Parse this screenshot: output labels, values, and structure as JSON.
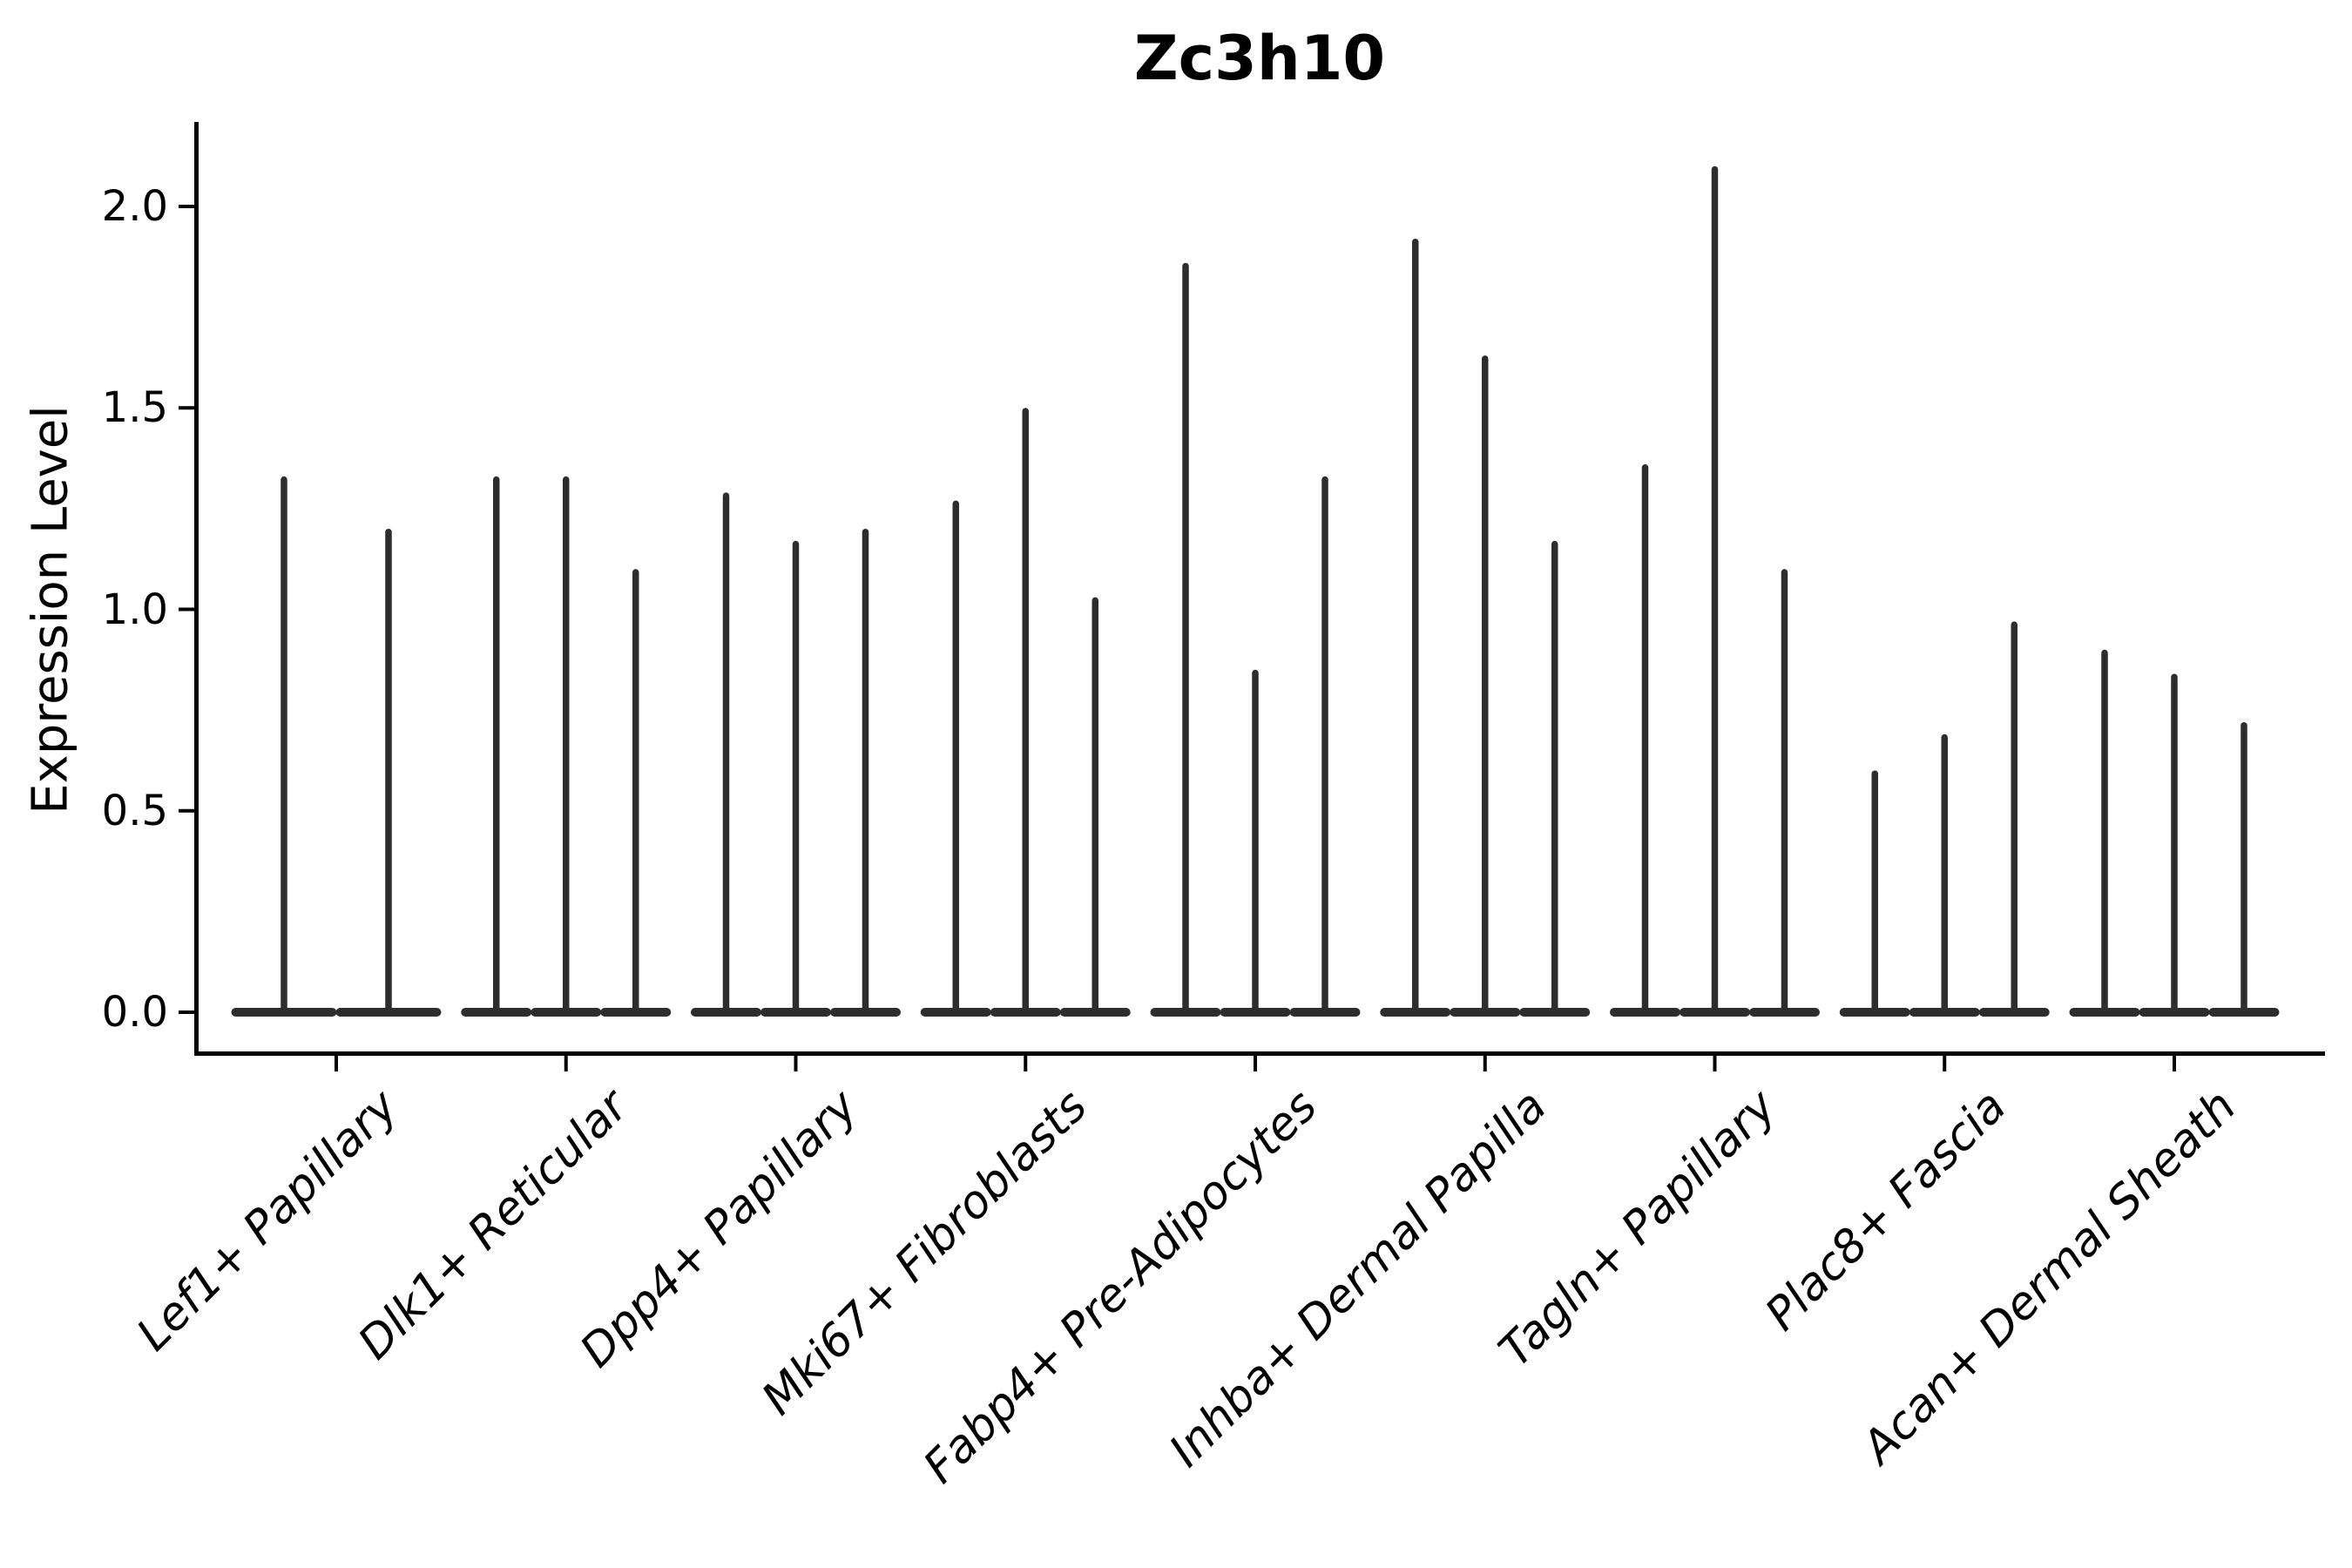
{
  "title": "Zc3h10",
  "ylabel": "Expression Level",
  "colors": {
    "violin": "#2d2d2d",
    "axis": "#000000",
    "background": "#ffffff",
    "text": "#000000"
  },
  "chart_data": {
    "type": "violin",
    "title": "Zc3h10",
    "xlabel": "",
    "ylabel": "Expression Level",
    "ylim": [
      0,
      2.21
    ],
    "yticks": [
      0.0,
      0.5,
      1.0,
      1.5,
      2.0
    ],
    "grid": false,
    "legend": "none",
    "violin_style": "thin spike violins: heavy density mass at 0 (flat base) with a narrow spike up to the maximum expression value",
    "categories": [
      "Lef1+ Papillary",
      "Dlk1+ Reticular",
      "Dpp4+ Papillary",
      "Mki67+ Fibroblasts",
      "Fabp4+ Pre-Adipocytes",
      "Inhba+ Dermal Papilla",
      "Tagln+ Papillary",
      "Plac8+ Fascia",
      "Acan+ Dermal Sheath"
    ],
    "groups": [
      {
        "category": "Lef1+ Papillary",
        "violin_maxima": [
          1.33,
          1.2
        ],
        "baseline_value": 0.0
      },
      {
        "category": "Dlk1+ Reticular",
        "violin_maxima": [
          1.33,
          1.33,
          1.1
        ],
        "baseline_value": 0.0
      },
      {
        "category": "Dpp4+ Papillary",
        "violin_maxima": [
          1.29,
          1.17,
          1.2
        ],
        "baseline_value": 0.0
      },
      {
        "category": "Mki67+ Fibroblasts",
        "violin_maxima": [
          1.27,
          1.5,
          1.03
        ],
        "baseline_value": 0.0
      },
      {
        "category": "Fabp4+ Pre-Adipocytes",
        "violin_maxima": [
          1.86,
          0.85,
          1.33
        ],
        "baseline_value": 0.0
      },
      {
        "category": "Inhba+ Dermal Papilla",
        "violin_maxima": [
          1.92,
          1.63,
          1.17
        ],
        "baseline_value": 0.0
      },
      {
        "category": "Tagln+ Papillary",
        "violin_maxima": [
          1.36,
          2.1,
          1.1
        ],
        "baseline_value": 0.0
      },
      {
        "category": "Plac8+ Fascia",
        "violin_maxima": [
          0.6,
          0.69,
          0.97
        ],
        "baseline_value": 0.0
      },
      {
        "category": "Acan+ Dermal Sheath",
        "violin_maxima": [
          0.9,
          0.84,
          0.72
        ],
        "baseline_value": 0.0
      }
    ]
  }
}
